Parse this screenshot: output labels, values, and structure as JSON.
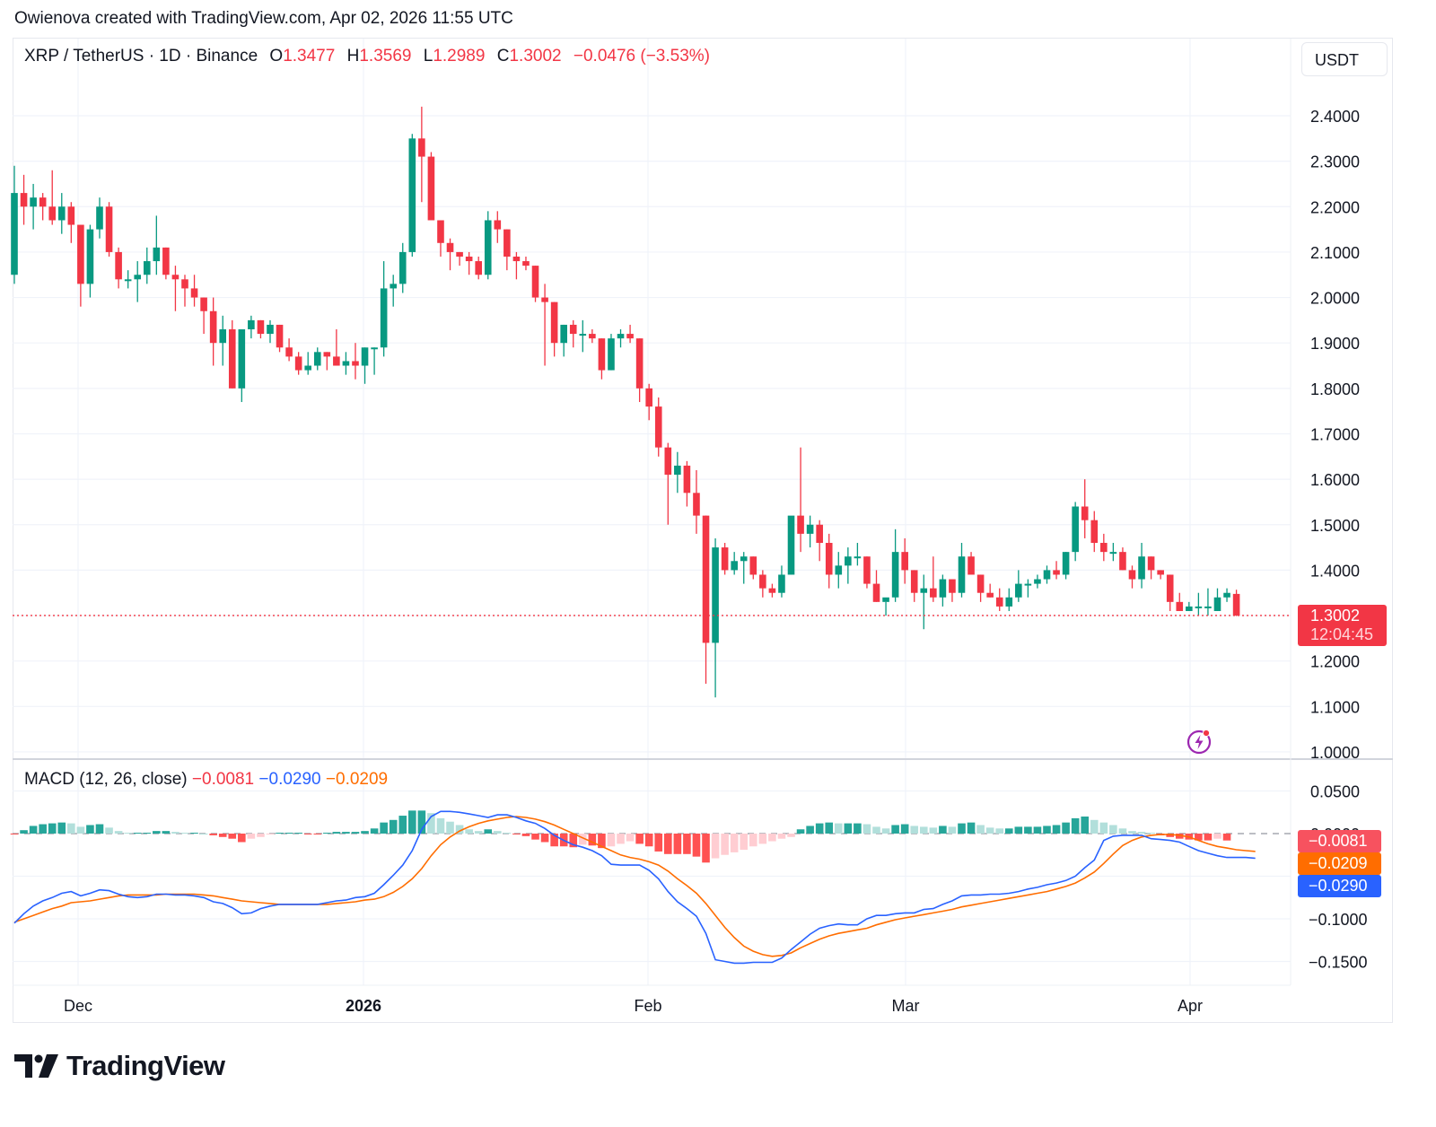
{
  "attribution": "Owienova created with TradingView.com, Apr 02, 2026 11:55 UTC",
  "header": {
    "symbol": "XRP / TetherUS · 1D · Binance",
    "open_label": "O",
    "open": "1.3477",
    "high_label": "H",
    "high": "1.3569",
    "low_label": "L",
    "low": "1.2989",
    "close_label": "C",
    "close": "1.3002",
    "change": "−0.0476 (−3.53%)",
    "currency_button": "USDT"
  },
  "price_axis": {
    "labels": [
      "2.4000",
      "2.3000",
      "2.2000",
      "2.1000",
      "2.0000",
      "1.9000",
      "1.8000",
      "1.7000",
      "1.6000",
      "1.5000",
      "1.4000",
      "1.3000",
      "1.2000",
      "1.1000",
      "1.0000"
    ],
    "last_price": "1.3002",
    "countdown": "12:04:45"
  },
  "time_axis": {
    "labels": [
      {
        "text": "Dec",
        "bold": false
      },
      {
        "text": "2026",
        "bold": true
      },
      {
        "text": "Feb",
        "bold": false
      },
      {
        "text": "Mar",
        "bold": false
      },
      {
        "text": "Apr",
        "bold": false
      }
    ]
  },
  "macd": {
    "title": "MACD (12, 26, close)",
    "histogram_value": "−0.0081",
    "macd_value": "−0.0290",
    "signal_value": "−0.0209",
    "axis_labels": [
      "0.0500",
      "0.0000",
      "−0.1000",
      "−0.1500"
    ],
    "tags": [
      {
        "text": "−0.0081",
        "color": "#f7525f"
      },
      {
        "text": "−0.0209",
        "color": "#ff6d00"
      },
      {
        "text": "−0.0290",
        "color": "#2962ff"
      }
    ]
  },
  "colors": {
    "up": "#089981",
    "down": "#f23645",
    "macd_line": "#2962ff",
    "signal_line": "#ff6d00",
    "hist_up_strong": "#26a69a",
    "hist_up_weak": "#b2dfdb",
    "hist_down_strong": "#ff5252",
    "hist_down_weak": "#ffcdd2",
    "grid": "#f0f3fa"
  },
  "branding": {
    "logo_text": "TradingView"
  },
  "chart_data": [
    {
      "type": "candlestick",
      "title": "XRP / TetherUS · 1D · Binance",
      "ylabel": "USDT",
      "ylim": [
        1.0,
        2.42
      ],
      "grid": true,
      "x_ticks": [
        "Dec",
        "2026",
        "Feb",
        "Mar",
        "Apr"
      ],
      "last_close": 1.3002,
      "ohlc": [
        [
          2.05,
          2.29,
          2.03,
          2.23
        ],
        [
          2.23,
          2.27,
          2.16,
          2.2
        ],
        [
          2.2,
          2.25,
          2.15,
          2.22
        ],
        [
          2.22,
          2.23,
          2.17,
          2.2
        ],
        [
          2.2,
          2.28,
          2.16,
          2.17
        ],
        [
          2.17,
          2.23,
          2.14,
          2.2
        ],
        [
          2.2,
          2.21,
          2.12,
          2.16
        ],
        [
          2.16,
          2.16,
          1.98,
          2.03
        ],
        [
          2.03,
          2.16,
          2.0,
          2.15
        ],
        [
          2.15,
          2.22,
          2.13,
          2.2
        ],
        [
          2.2,
          2.21,
          2.09,
          2.1
        ],
        [
          2.1,
          2.11,
          2.02,
          2.04
        ],
        [
          2.04,
          2.06,
          2.02,
          2.04
        ],
        [
          2.04,
          2.08,
          1.99,
          2.05
        ],
        [
          2.05,
          2.11,
          2.03,
          2.08
        ],
        [
          2.08,
          2.18,
          2.05,
          2.11
        ],
        [
          2.11,
          2.11,
          2.04,
          2.05
        ],
        [
          2.05,
          2.07,
          1.97,
          2.04
        ],
        [
          2.04,
          2.05,
          1.98,
          2.02
        ],
        [
          2.02,
          2.05,
          1.98,
          2.0
        ],
        [
          2.0,
          2.0,
          1.92,
          1.97
        ],
        [
          1.97,
          2.0,
          1.85,
          1.9
        ],
        [
          1.9,
          1.96,
          1.85,
          1.93
        ],
        [
          1.93,
          1.95,
          1.8,
          1.8
        ],
        [
          1.8,
          1.92,
          1.77,
          1.93
        ],
        [
          1.93,
          1.96,
          1.91,
          1.95
        ],
        [
          1.95,
          1.95,
          1.91,
          1.92
        ],
        [
          1.92,
          1.95,
          1.9,
          1.94
        ],
        [
          1.94,
          1.94,
          1.88,
          1.89
        ],
        [
          1.89,
          1.91,
          1.86,
          1.87
        ],
        [
          1.87,
          1.88,
          1.83,
          1.84
        ],
        [
          1.84,
          1.88,
          1.83,
          1.85
        ],
        [
          1.85,
          1.89,
          1.84,
          1.88
        ],
        [
          1.88,
          1.88,
          1.84,
          1.87
        ],
        [
          1.87,
          1.93,
          1.85,
          1.85
        ],
        [
          1.85,
          1.88,
          1.83,
          1.86
        ],
        [
          1.86,
          1.9,
          1.82,
          1.85
        ],
        [
          1.85,
          1.89,
          1.81,
          1.89
        ],
        [
          1.89,
          1.89,
          1.83,
          1.89
        ],
        [
          1.89,
          2.08,
          1.87,
          2.02
        ],
        [
          2.02,
          2.05,
          1.98,
          2.03
        ],
        [
          2.03,
          2.12,
          2.01,
          2.1
        ],
        [
          2.1,
          2.36,
          2.09,
          2.35
        ],
        [
          2.35,
          2.42,
          2.21,
          2.31
        ],
        [
          2.31,
          2.32,
          2.18,
          2.17
        ],
        [
          2.17,
          2.15,
          2.09,
          2.12
        ],
        [
          2.12,
          2.13,
          2.06,
          2.1
        ],
        [
          2.1,
          2.1,
          2.07,
          2.09
        ],
        [
          2.09,
          2.1,
          2.05,
          2.08
        ],
        [
          2.08,
          2.09,
          2.04,
          2.05
        ],
        [
          2.05,
          2.19,
          2.04,
          2.17
        ],
        [
          2.17,
          2.19,
          2.12,
          2.15
        ],
        [
          2.15,
          2.15,
          2.06,
          2.09
        ],
        [
          2.09,
          2.1,
          2.04,
          2.08
        ],
        [
          2.08,
          2.09,
          2.06,
          2.07
        ],
        [
          2.07,
          2.07,
          1.99,
          2.0
        ],
        [
          2.0,
          2.03,
          1.85,
          1.99
        ],
        [
          1.99,
          1.99,
          1.87,
          1.9
        ],
        [
          1.9,
          1.94,
          1.87,
          1.94
        ],
        [
          1.94,
          1.95,
          1.89,
          1.92
        ],
        [
          1.92,
          1.95,
          1.88,
          1.92
        ],
        [
          1.92,
          1.93,
          1.9,
          1.91
        ],
        [
          1.91,
          1.91,
          1.82,
          1.84
        ],
        [
          1.84,
          1.92,
          1.84,
          1.91
        ],
        [
          1.91,
          1.93,
          1.89,
          1.92
        ],
        [
          1.92,
          1.94,
          1.9,
          1.91
        ],
        [
          1.91,
          1.91,
          1.77,
          1.8
        ],
        [
          1.8,
          1.81,
          1.73,
          1.76
        ],
        [
          1.76,
          1.78,
          1.65,
          1.67
        ],
        [
          1.67,
          1.68,
          1.5,
          1.61
        ],
        [
          1.61,
          1.66,
          1.57,
          1.63
        ],
        [
          1.63,
          1.64,
          1.54,
          1.57
        ],
        [
          1.57,
          1.62,
          1.48,
          1.52
        ],
        [
          1.52,
          1.52,
          1.15,
          1.24
        ],
        [
          1.24,
          1.47,
          1.12,
          1.45
        ],
        [
          1.45,
          1.46,
          1.39,
          1.4
        ],
        [
          1.4,
          1.44,
          1.39,
          1.42
        ],
        [
          1.42,
          1.44,
          1.37,
          1.43
        ],
        [
          1.43,
          1.43,
          1.38,
          1.39
        ],
        [
          1.39,
          1.4,
          1.34,
          1.36
        ],
        [
          1.36,
          1.37,
          1.34,
          1.35
        ],
        [
          1.35,
          1.41,
          1.34,
          1.39
        ],
        [
          1.39,
          1.51,
          1.39,
          1.52
        ],
        [
          1.52,
          1.67,
          1.44,
          1.48
        ],
        [
          1.48,
          1.52,
          1.45,
          1.5
        ],
        [
          1.5,
          1.51,
          1.42,
          1.46
        ],
        [
          1.46,
          1.48,
          1.36,
          1.39
        ],
        [
          1.39,
          1.44,
          1.36,
          1.41
        ],
        [
          1.41,
          1.45,
          1.37,
          1.43
        ],
        [
          1.43,
          1.46,
          1.41,
          1.43
        ],
        [
          1.43,
          1.43,
          1.36,
          1.37
        ],
        [
          1.37,
          1.4,
          1.33,
          1.33
        ],
        [
          1.33,
          1.33,
          1.3,
          1.34
        ],
        [
          1.34,
          1.49,
          1.33,
          1.44
        ],
        [
          1.44,
          1.47,
          1.37,
          1.4
        ],
        [
          1.4,
          1.4,
          1.33,
          1.35
        ],
        [
          1.35,
          1.39,
          1.27,
          1.36
        ],
        [
          1.36,
          1.43,
          1.33,
          1.34
        ],
        [
          1.34,
          1.39,
          1.32,
          1.38
        ],
        [
          1.38,
          1.38,
          1.33,
          1.35
        ],
        [
          1.35,
          1.46,
          1.34,
          1.43
        ],
        [
          1.43,
          1.44,
          1.4,
          1.39
        ],
        [
          1.39,
          1.39,
          1.33,
          1.35
        ],
        [
          1.35,
          1.37,
          1.34,
          1.34
        ],
        [
          1.34,
          1.36,
          1.31,
          1.32
        ],
        [
          1.32,
          1.36,
          1.31,
          1.34
        ],
        [
          1.34,
          1.4,
          1.33,
          1.37
        ],
        [
          1.37,
          1.38,
          1.34,
          1.37
        ],
        [
          1.37,
          1.39,
          1.36,
          1.38
        ],
        [
          1.38,
          1.41,
          1.37,
          1.4
        ],
        [
          1.4,
          1.42,
          1.38,
          1.39
        ],
        [
          1.39,
          1.44,
          1.38,
          1.44
        ],
        [
          1.44,
          1.55,
          1.42,
          1.54
        ],
        [
          1.54,
          1.6,
          1.47,
          1.51
        ],
        [
          1.51,
          1.53,
          1.44,
          1.46
        ],
        [
          1.46,
          1.48,
          1.42,
          1.44
        ],
        [
          1.44,
          1.46,
          1.42,
          1.44
        ],
        [
          1.44,
          1.45,
          1.4,
          1.4
        ],
        [
          1.4,
          1.41,
          1.36,
          1.38
        ],
        [
          1.38,
          1.46,
          1.36,
          1.43
        ],
        [
          1.43,
          1.43,
          1.38,
          1.4
        ],
        [
          1.4,
          1.4,
          1.38,
          1.39
        ],
        [
          1.39,
          1.39,
          1.31,
          1.33
        ],
        [
          1.33,
          1.35,
          1.31,
          1.31
        ],
        [
          1.31,
          1.33,
          1.31,
          1.32
        ],
        [
          1.32,
          1.35,
          1.3,
          1.32
        ],
        [
          1.32,
          1.36,
          1.3,
          1.32
        ],
        [
          1.31,
          1.36,
          1.31,
          1.34
        ],
        [
          1.34,
          1.36,
          1.33,
          1.35
        ],
        [
          1.3477,
          1.3569,
          1.2989,
          1.3002
        ]
      ]
    },
    {
      "type": "macd",
      "title": "MACD (12, 26, close)",
      "params": {
        "fast": 12,
        "slow": 26,
        "source": "close"
      },
      "ylim": [
        -0.165,
        0.065
      ],
      "y_ticks": [
        0.05,
        0,
        -0.1,
        -0.15
      ],
      "latest": {
        "histogram": -0.0081,
        "macd": -0.029,
        "signal": -0.0209
      },
      "histogram": [
        -0.001,
        0.004,
        0.009,
        0.011,
        0.012,
        0.013,
        0.012,
        0.008,
        0.01,
        0.011,
        0.007,
        0.003,
        0.001,
        0.001,
        0.001,
        0.003,
        0.003,
        0.002,
        0.001,
        0.001,
        0.0,
        -0.002,
        -0.004,
        -0.006,
        -0.01,
        -0.006,
        -0.004,
        -0.001,
        0.001,
        0.001,
        0.001,
        -0.001,
        -0.001,
        0.001,
        0.002,
        0.002,
        0.002,
        0.003,
        0.006,
        0.013,
        0.016,
        0.021,
        0.027,
        0.027,
        0.024,
        0.018,
        0.014,
        0.01,
        0.005,
        0.003,
        0.005,
        0.003,
        0.001,
        -0.001,
        -0.003,
        -0.007,
        -0.01,
        -0.015,
        -0.015,
        -0.016,
        -0.013,
        -0.014,
        -0.017,
        -0.015,
        -0.012,
        -0.009,
        -0.012,
        -0.015,
        -0.021,
        -0.024,
        -0.024,
        -0.024,
        -0.027,
        -0.034,
        -0.029,
        -0.025,
        -0.022,
        -0.019,
        -0.015,
        -0.012,
        -0.009,
        -0.006,
        -0.004,
        0.005,
        0.009,
        0.012,
        0.013,
        0.012,
        0.012,
        0.012,
        0.011,
        0.008,
        0.006,
        0.01,
        0.011,
        0.009,
        0.008,
        0.007,
        0.009,
        0.008,
        0.012,
        0.013,
        0.01,
        0.007,
        0.006,
        0.006,
        0.008,
        0.008,
        0.008,
        0.009,
        0.01,
        0.013,
        0.018,
        0.02,
        0.016,
        0.013,
        0.01,
        0.006,
        0.003,
        0.002,
        0.001,
        -0.002,
        -0.004,
        -0.006,
        -0.007,
        -0.008,
        -0.008,
        -0.006,
        -0.0081
      ],
      "macd_line": [
        -0.105,
        -0.094,
        -0.085,
        -0.079,
        -0.075,
        -0.07,
        -0.068,
        -0.073,
        -0.07,
        -0.066,
        -0.067,
        -0.071,
        -0.074,
        -0.075,
        -0.074,
        -0.071,
        -0.071,
        -0.072,
        -0.072,
        -0.073,
        -0.075,
        -0.08,
        -0.082,
        -0.087,
        -0.094,
        -0.093,
        -0.088,
        -0.085,
        -0.083,
        -0.083,
        -0.083,
        -0.083,
        -0.083,
        -0.081,
        -0.079,
        -0.078,
        -0.075,
        -0.074,
        -0.07,
        -0.06,
        -0.049,
        -0.037,
        -0.02,
        0.005,
        0.02,
        0.026,
        0.026,
        0.025,
        0.023,
        0.021,
        0.019,
        0.022,
        0.022,
        0.019,
        0.015,
        0.012,
        0.006,
        -0.002,
        -0.008,
        -0.013,
        -0.016,
        -0.02,
        -0.026,
        -0.036,
        -0.037,
        -0.037,
        -0.037,
        -0.043,
        -0.053,
        -0.068,
        -0.08,
        -0.088,
        -0.097,
        -0.117,
        -0.148,
        -0.15,
        -0.152,
        -0.152,
        -0.151,
        -0.151,
        -0.151,
        -0.146,
        -0.136,
        -0.127,
        -0.118,
        -0.111,
        -0.108,
        -0.106,
        -0.107,
        -0.107,
        -0.1,
        -0.096,
        -0.096,
        -0.094,
        -0.093,
        -0.093,
        -0.089,
        -0.088,
        -0.083,
        -0.079,
        -0.073,
        -0.072,
        -0.072,
        -0.071,
        -0.071,
        -0.07,
        -0.068,
        -0.065,
        -0.063,
        -0.06,
        -0.058,
        -0.055,
        -0.05,
        -0.04,
        -0.031,
        -0.008,
        -0.003,
        -0.002,
        -0.002,
        -0.002,
        -0.006,
        -0.007,
        -0.008,
        -0.01,
        -0.015,
        -0.02,
        -0.023,
        -0.026,
        -0.028,
        -0.028,
        -0.028,
        -0.029
      ],
      "signal_line": [
        -0.104,
        -0.1,
        -0.096,
        -0.092,
        -0.088,
        -0.085,
        -0.081,
        -0.08,
        -0.079,
        -0.077,
        -0.075,
        -0.073,
        -0.072,
        -0.072,
        -0.072,
        -0.072,
        -0.071,
        -0.071,
        -0.071,
        -0.071,
        -0.072,
        -0.073,
        -0.075,
        -0.077,
        -0.079,
        -0.08,
        -0.081,
        -0.082,
        -0.083,
        -0.083,
        -0.083,
        -0.083,
        -0.083,
        -0.083,
        -0.082,
        -0.081,
        -0.08,
        -0.078,
        -0.077,
        -0.074,
        -0.069,
        -0.062,
        -0.053,
        -0.041,
        -0.026,
        -0.013,
        -0.004,
        0.003,
        0.008,
        0.012,
        0.015,
        0.017,
        0.019,
        0.02,
        0.019,
        0.017,
        0.014,
        0.01,
        0.005,
        0.0,
        -0.005,
        -0.01,
        -0.015,
        -0.02,
        -0.025,
        -0.028,
        -0.03,
        -0.033,
        -0.037,
        -0.044,
        -0.053,
        -0.061,
        -0.07,
        -0.082,
        -0.096,
        -0.11,
        -0.122,
        -0.132,
        -0.138,
        -0.142,
        -0.144,
        -0.143,
        -0.14,
        -0.134,
        -0.129,
        -0.124,
        -0.12,
        -0.117,
        -0.115,
        -0.113,
        -0.111,
        -0.107,
        -0.104,
        -0.101,
        -0.099,
        -0.097,
        -0.095,
        -0.093,
        -0.091,
        -0.089,
        -0.086,
        -0.084,
        -0.082,
        -0.08,
        -0.078,
        -0.076,
        -0.074,
        -0.072,
        -0.07,
        -0.068,
        -0.065,
        -0.062,
        -0.058,
        -0.052,
        -0.045,
        -0.035,
        -0.024,
        -0.014,
        -0.008,
        -0.004,
        -0.002,
        -0.001,
        -0.001,
        -0.002,
        -0.004,
        -0.008,
        -0.012,
        -0.015,
        -0.017,
        -0.019,
        -0.02,
        -0.0209
      ]
    }
  ]
}
